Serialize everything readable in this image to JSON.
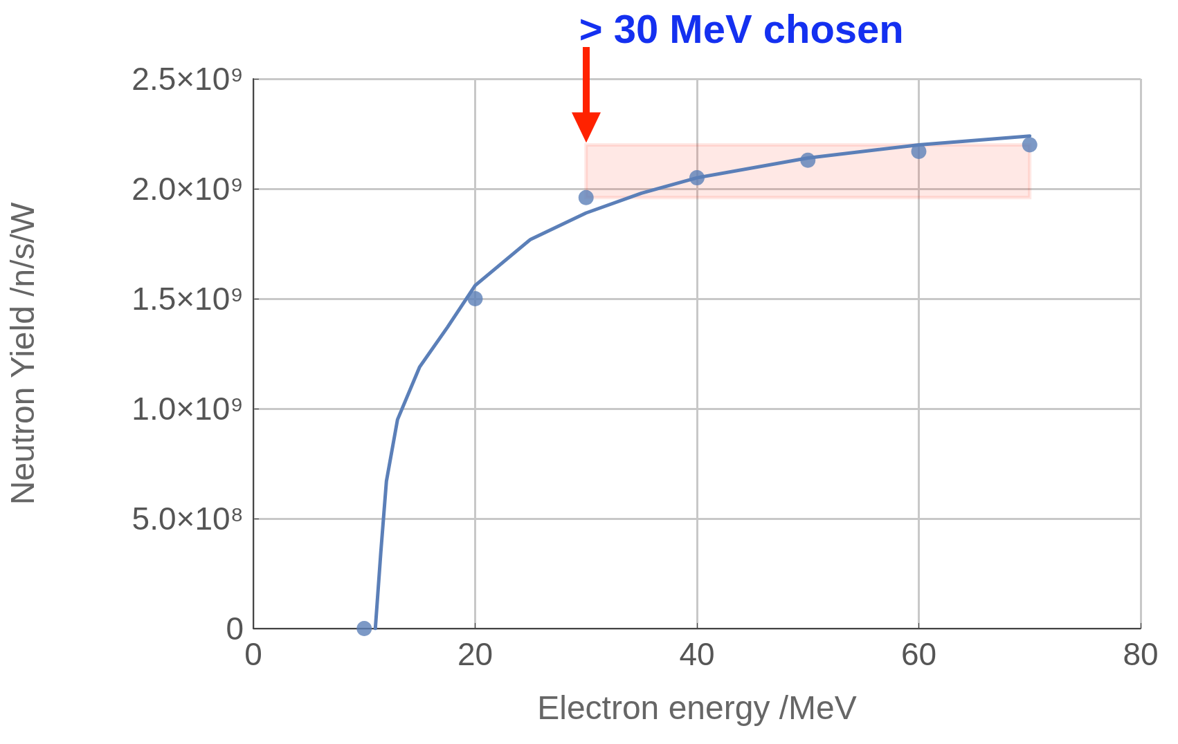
{
  "chart_data": {
    "type": "scatter",
    "xlabel": "Electron energy /MeV",
    "ylabel": "Neutron Yield /n/s/W",
    "series": [
      {
        "color": "#5b7fb8",
        "marker": "circle",
        "x": [
          10,
          20,
          30,
          40,
          50,
          60,
          70
        ],
        "values": [
          0,
          1500000000,
          1960000000,
          2050000000,
          2130000000,
          2170000000,
          2200000000
        ]
      },
      {
        "type": "line",
        "color": "#5b7fb8",
        "marker": "none",
        "line_style": "solid",
        "x": [
          11,
          11.5,
          12,
          13,
          15,
          17.5,
          20,
          25,
          30,
          35,
          40,
          50,
          60,
          70
        ],
        "values": [
          0,
          350000000,
          670000000,
          950000000,
          1190000000,
          1370000000,
          1560000000,
          1770000000,
          1890000000,
          1980000000,
          2050000000,
          2140000000,
          2200000000,
          2240000000
        ]
      }
    ],
    "annotations": [
      "> 30 MeV chosen"
    ],
    "bands": [
      {
        "axis": "x",
        "from": 30,
        "to": 70,
        "color": "#ff2200"
      }
    ],
    "xlim": [
      0,
      80
    ],
    "xticks": [
      0,
      20,
      40,
      60,
      80
    ],
    "ylim": [
      0,
      2500000000
    ],
    "yticks": [
      0,
      {
        "value": 500000000,
        "label": "5.0×10⁸"
      },
      {
        "value": 1000000000,
        "label": "1.0×10⁹"
      },
      {
        "value": 1500000000,
        "label": "1.5×10⁹"
      },
      {
        "value": 2000000000,
        "label": "2.0×10⁹"
      },
      {
        "value": 2500000000,
        "label": "2.5×10⁹"
      }
    ],
    "grid": true
  }
}
